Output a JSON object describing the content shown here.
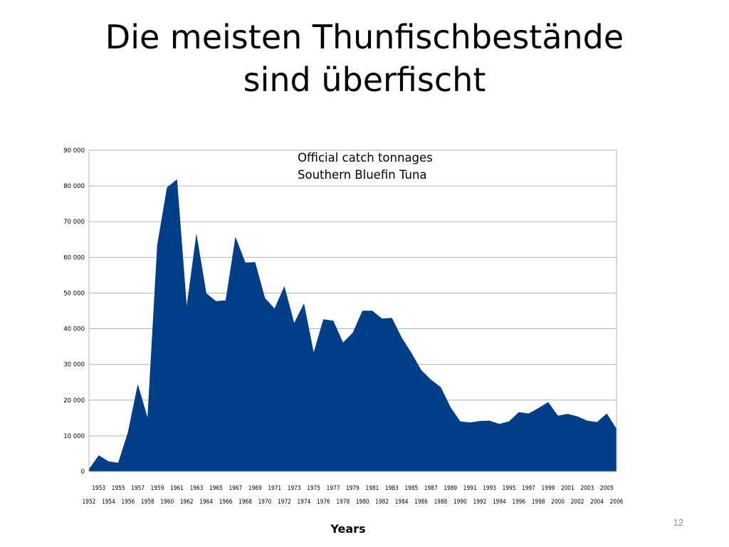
{
  "slide": {
    "title_line1": "Die meisten Thunfischbestände",
    "title_line2": "sind überfischt",
    "page_number": "12"
  },
  "chart_data": {
    "type": "area",
    "title": "",
    "annotation_lines": [
      "Official catch tonnages",
      "Southern Bluefin Tuna"
    ],
    "xlabel": "Years",
    "ylabel": "",
    "x": [
      1952,
      1953,
      1954,
      1955,
      1956,
      1957,
      1958,
      1959,
      1960,
      1961,
      1962,
      1963,
      1964,
      1965,
      1966,
      1967,
      1968,
      1969,
      1970,
      1971,
      1972,
      1973,
      1974,
      1975,
      1976,
      1977,
      1978,
      1979,
      1980,
      1981,
      1982,
      1983,
      1984,
      1985,
      1986,
      1987,
      1988,
      1989,
      1990,
      1991,
      1992,
      1993,
      1994,
      1995,
      1996,
      1997,
      1998,
      1999,
      2000,
      2001,
      2002,
      2003,
      2004,
      2005,
      2006
    ],
    "series": [
      {
        "name": "",
        "color": "#003f87",
        "values": [
          600,
          4500,
          2800,
          2400,
          11000,
          24300,
          14900,
          63500,
          79600,
          81800,
          46000,
          66400,
          49900,
          47700,
          47900,
          65600,
          58500,
          58600,
          48600,
          45600,
          51800,
          41500,
          47000,
          33200,
          42600,
          42200,
          36100,
          38800,
          45000,
          45000,
          42800,
          43000,
          37500,
          33200,
          28400,
          25700,
          23600,
          18000,
          14000,
          13700,
          14100,
          14200,
          13300,
          14000,
          16600,
          16200,
          17700,
          19400,
          15600,
          16100,
          15400,
          14200,
          13800,
          16200,
          11900
        ]
      }
    ],
    "ylim": [
      0,
      90000
    ],
    "yticks": [
      0,
      10000,
      20000,
      30000,
      40000,
      50000,
      60000,
      70000,
      80000,
      90000
    ],
    "ytick_labels": [
      "0",
      "10 000",
      "20 000",
      "30 000",
      "40 000",
      "50 000",
      "60 000",
      "70 000",
      "80 000",
      "90 000"
    ],
    "grid": true,
    "legend": "none"
  }
}
